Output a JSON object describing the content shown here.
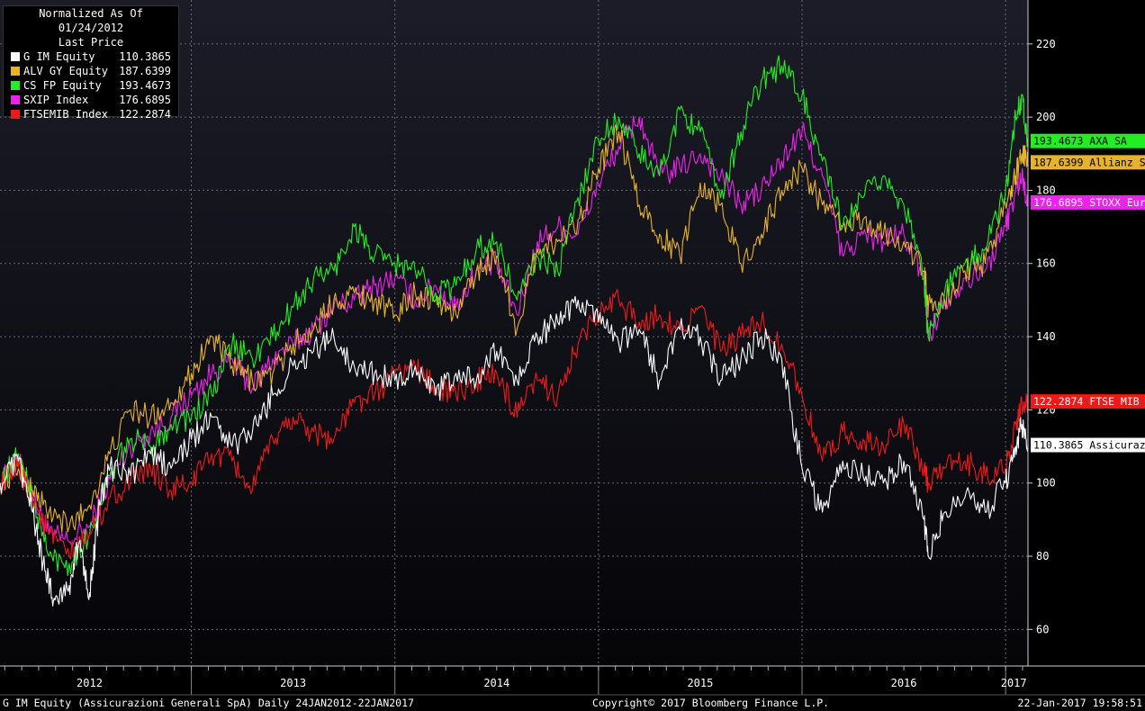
{
  "legend": {
    "title": "Normalized As Of 01/24/2012",
    "subtitle": "Last Price",
    "items": [
      {
        "name": "G IM Equity",
        "value": "110.3865",
        "color": "#ffffff"
      },
      {
        "name": "ALV GY Equity",
        "value": "187.6399",
        "color": "#e6b32a"
      },
      {
        "name": "CS FP Equity",
        "value": "193.4673",
        "color": "#22ee22"
      },
      {
        "name": "SXIP Index",
        "value": "176.6895",
        "color": "#ee22ee"
      },
      {
        "name": "FTSEMIB Index",
        "value": "122.2874",
        "color": "#ee1a1a"
      }
    ]
  },
  "footer": {
    "left": "G IM Equity (Assicurazioni Generali SpA)  Daily 24JAN2012-22JAN2017",
    "center": "Copyright© 2017 Bloomberg Finance L.P.",
    "right": "22-Jan-2017 19:58:51"
  },
  "chart_data": {
    "type": "line",
    "ylim": [
      50,
      232
    ],
    "xlim": [
      2012.06,
      2017.11
    ],
    "grid": true,
    "y_ticks": [
      60,
      80,
      100,
      120,
      140,
      160,
      180,
      200,
      220
    ],
    "x_tick_labels": [
      {
        "label": "2012",
        "x": 2012.5
      },
      {
        "label": "2013",
        "x": 2013.5
      },
      {
        "label": "2014",
        "x": 2014.5
      },
      {
        "label": "2015",
        "x": 2015.5
      },
      {
        "label": "2016",
        "x": 2016.5
      },
      {
        "label": "2017",
        "x": 2017.04
      }
    ],
    "year_boundaries": [
      2012.0,
      2013.0,
      2014.0,
      2015.0,
      2016.0,
      2017.0
    ],
    "series": [
      {
        "name": "SXIP Index",
        "color": "#ee22ee",
        "last_label": "176.6895 STOXX Eur",
        "last_value": 176.6895,
        "points": [
          [
            2012.06,
            100
          ],
          [
            2012.15,
            106
          ],
          [
            2012.22,
            96
          ],
          [
            2012.3,
            86
          ],
          [
            2012.4,
            84
          ],
          [
            2012.5,
            88
          ],
          [
            2012.6,
            101
          ],
          [
            2012.7,
            110
          ],
          [
            2012.8,
            114
          ],
          [
            2012.9,
            118
          ],
          [
            2013.0,
            124
          ],
          [
            2013.1,
            130
          ],
          [
            2013.2,
            134
          ],
          [
            2013.3,
            126
          ],
          [
            2013.4,
            134
          ],
          [
            2013.5,
            138
          ],
          [
            2013.6,
            142
          ],
          [
            2013.7,
            148
          ],
          [
            2013.8,
            150
          ],
          [
            2013.9,
            154
          ],
          [
            2014.0,
            156
          ],
          [
            2014.1,
            150
          ],
          [
            2014.2,
            154
          ],
          [
            2014.3,
            148
          ],
          [
            2014.4,
            158
          ],
          [
            2014.5,
            160
          ],
          [
            2014.6,
            146
          ],
          [
            2014.7,
            166
          ],
          [
            2014.8,
            170
          ],
          [
            2014.9,
            168
          ],
          [
            2015.0,
            182
          ],
          [
            2015.1,
            192
          ],
          [
            2015.2,
            200
          ],
          [
            2015.3,
            184
          ],
          [
            2015.4,
            186
          ],
          [
            2015.5,
            190
          ],
          [
            2015.6,
            184
          ],
          [
            2015.7,
            176
          ],
          [
            2015.8,
            180
          ],
          [
            2015.9,
            188
          ],
          [
            2016.0,
            196
          ],
          [
            2016.1,
            184
          ],
          [
            2016.2,
            162
          ],
          [
            2016.3,
            168
          ],
          [
            2016.4,
            166
          ],
          [
            2016.5,
            168
          ],
          [
            2016.6,
            156
          ],
          [
            2016.62,
            140
          ],
          [
            2016.7,
            150
          ],
          [
            2016.8,
            156
          ],
          [
            2016.9,
            158
          ],
          [
            2017.0,
            170
          ],
          [
            2017.05,
            180
          ],
          [
            2017.08,
            184
          ],
          [
            2017.11,
            176.6895
          ]
        ]
      },
      {
        "name": "ALV GY Equity",
        "color": "#e6b32a",
        "last_label": "187.6399 Allianz S",
        "last_value": 187.6399,
        "points": [
          [
            2012.06,
            100
          ],
          [
            2012.15,
            104
          ],
          [
            2012.22,
            98
          ],
          [
            2012.3,
            92
          ],
          [
            2012.4,
            88
          ],
          [
            2012.5,
            94
          ],
          [
            2012.6,
            108
          ],
          [
            2012.7,
            120
          ],
          [
            2012.8,
            118
          ],
          [
            2012.9,
            122
          ],
          [
            2013.0,
            130
          ],
          [
            2013.1,
            140
          ],
          [
            2013.2,
            132
          ],
          [
            2013.3,
            128
          ],
          [
            2013.4,
            130
          ],
          [
            2013.5,
            138
          ],
          [
            2013.6,
            142
          ],
          [
            2013.7,
            150
          ],
          [
            2013.8,
            152
          ],
          [
            2013.9,
            150
          ],
          [
            2014.0,
            146
          ],
          [
            2014.1,
            152
          ],
          [
            2014.2,
            150
          ],
          [
            2014.3,
            146
          ],
          [
            2014.4,
            158
          ],
          [
            2014.5,
            162
          ],
          [
            2014.6,
            142
          ],
          [
            2014.7,
            164
          ],
          [
            2014.8,
            166
          ],
          [
            2014.9,
            172
          ],
          [
            2015.0,
            186
          ],
          [
            2015.1,
            196
          ],
          [
            2015.2,
            176
          ],
          [
            2015.3,
            168
          ],
          [
            2015.4,
            162
          ],
          [
            2015.5,
            182
          ],
          [
            2015.6,
            176
          ],
          [
            2015.7,
            160
          ],
          [
            2015.8,
            168
          ],
          [
            2015.9,
            180
          ],
          [
            2016.0,
            186
          ],
          [
            2016.1,
            176
          ],
          [
            2016.2,
            170
          ],
          [
            2016.3,
            172
          ],
          [
            2016.4,
            168
          ],
          [
            2016.5,
            166
          ],
          [
            2016.6,
            158
          ],
          [
            2016.62,
            148
          ],
          [
            2016.7,
            150
          ],
          [
            2016.8,
            158
          ],
          [
            2016.9,
            160
          ],
          [
            2017.0,
            176
          ],
          [
            2017.05,
            184
          ],
          [
            2017.08,
            190
          ],
          [
            2017.11,
            187.6399
          ]
        ]
      },
      {
        "name": "CS FP Equity",
        "color": "#22ee22",
        "last_label": "193.4673 AXA SA",
        "last_value": 193.4673,
        "points": [
          [
            2012.06,
            100
          ],
          [
            2012.15,
            108
          ],
          [
            2012.22,
            96
          ],
          [
            2012.3,
            80
          ],
          [
            2012.4,
            78
          ],
          [
            2012.5,
            86
          ],
          [
            2012.6,
            102
          ],
          [
            2012.7,
            112
          ],
          [
            2012.8,
            110
          ],
          [
            2012.9,
            116
          ],
          [
            2013.0,
            118
          ],
          [
            2013.1,
            124
          ],
          [
            2013.2,
            138
          ],
          [
            2013.3,
            134
          ],
          [
            2013.4,
            140
          ],
          [
            2013.5,
            148
          ],
          [
            2013.6,
            156
          ],
          [
            2013.7,
            158
          ],
          [
            2013.8,
            170
          ],
          [
            2013.9,
            162
          ],
          [
            2014.0,
            160
          ],
          [
            2014.1,
            158
          ],
          [
            2014.2,
            152
          ],
          [
            2014.3,
            154
          ],
          [
            2014.4,
            164
          ],
          [
            2014.5,
            166
          ],
          [
            2014.6,
            150
          ],
          [
            2014.7,
            162
          ],
          [
            2014.8,
            158
          ],
          [
            2014.9,
            178
          ],
          [
            2015.0,
            194
          ],
          [
            2015.1,
            200
          ],
          [
            2015.2,
            190
          ],
          [
            2015.3,
            184
          ],
          [
            2015.4,
            202
          ],
          [
            2015.5,
            196
          ],
          [
            2015.6,
            178
          ],
          [
            2015.7,
            196
          ],
          [
            2015.8,
            210
          ],
          [
            2015.9,
            214
          ],
          [
            2016.0,
            206
          ],
          [
            2016.1,
            188
          ],
          [
            2016.2,
            170
          ],
          [
            2016.3,
            178
          ],
          [
            2016.4,
            184
          ],
          [
            2016.5,
            176
          ],
          [
            2016.6,
            156
          ],
          [
            2016.62,
            140
          ],
          [
            2016.7,
            152
          ],
          [
            2016.8,
            160
          ],
          [
            2016.9,
            164
          ],
          [
            2017.0,
            180
          ],
          [
            2017.05,
            200
          ],
          [
            2017.08,
            206
          ],
          [
            2017.11,
            193.4673
          ]
        ]
      },
      {
        "name": "FTSEMIB Index",
        "color": "#ee1a1a",
        "last_label": "122.2874 FTSE MIB",
        "last_value": 122.2874,
        "points": [
          [
            2012.06,
            100
          ],
          [
            2012.15,
            104
          ],
          [
            2012.22,
            96
          ],
          [
            2012.3,
            86
          ],
          [
            2012.4,
            80
          ],
          [
            2012.5,
            86
          ],
          [
            2012.6,
            96
          ],
          [
            2012.7,
            100
          ],
          [
            2012.8,
            104
          ],
          [
            2012.9,
            98
          ],
          [
            2013.0,
            100
          ],
          [
            2013.1,
            108
          ],
          [
            2013.2,
            106
          ],
          [
            2013.3,
            98
          ],
          [
            2013.4,
            112
          ],
          [
            2013.5,
            118
          ],
          [
            2013.6,
            114
          ],
          [
            2013.7,
            112
          ],
          [
            2013.8,
            122
          ],
          [
            2013.9,
            124
          ],
          [
            2014.0,
            130
          ],
          [
            2014.1,
            132
          ],
          [
            2014.2,
            126
          ],
          [
            2014.3,
            124
          ],
          [
            2014.4,
            128
          ],
          [
            2014.5,
            130
          ],
          [
            2014.6,
            118
          ],
          [
            2014.7,
            128
          ],
          [
            2014.8,
            124
          ],
          [
            2014.9,
            138
          ],
          [
            2015.0,
            146
          ],
          [
            2015.1,
            150
          ],
          [
            2015.2,
            144
          ],
          [
            2015.3,
            146
          ],
          [
            2015.4,
            142
          ],
          [
            2015.5,
            148
          ],
          [
            2015.6,
            136
          ],
          [
            2015.7,
            140
          ],
          [
            2015.8,
            144
          ],
          [
            2015.9,
            138
          ],
          [
            2016.0,
            124
          ],
          [
            2016.1,
            106
          ],
          [
            2016.2,
            114
          ],
          [
            2016.3,
            112
          ],
          [
            2016.4,
            110
          ],
          [
            2016.5,
            116
          ],
          [
            2016.6,
            104
          ],
          [
            2016.62,
            100
          ],
          [
            2016.7,
            104
          ],
          [
            2016.8,
            106
          ],
          [
            2016.9,
            102
          ],
          [
            2017.0,
            104
          ],
          [
            2017.05,
            116
          ],
          [
            2017.08,
            122
          ],
          [
            2017.11,
            122.2874
          ]
        ]
      },
      {
        "name": "G IM Equity",
        "color": "#ffffff",
        "last_label": "110.3865 Assicuraz",
        "last_value": 110.3865,
        "points": [
          [
            2012.06,
            100
          ],
          [
            2012.15,
            106
          ],
          [
            2012.22,
            92
          ],
          [
            2012.28,
            76
          ],
          [
            2012.33,
            68
          ],
          [
            2012.4,
            72
          ],
          [
            2012.45,
            84
          ],
          [
            2012.5,
            70
          ],
          [
            2012.55,
            94
          ],
          [
            2012.6,
            104
          ],
          [
            2012.7,
            102
          ],
          [
            2012.8,
            108
          ],
          [
            2012.9,
            104
          ],
          [
            2013.0,
            112
          ],
          [
            2013.1,
            118
          ],
          [
            2013.2,
            110
          ],
          [
            2013.3,
            114
          ],
          [
            2013.4,
            124
          ],
          [
            2013.5,
            132
          ],
          [
            2013.6,
            136
          ],
          [
            2013.7,
            140
          ],
          [
            2013.8,
            132
          ],
          [
            2013.9,
            130
          ],
          [
            2014.0,
            128
          ],
          [
            2014.1,
            132
          ],
          [
            2014.2,
            124
          ],
          [
            2014.3,
            130
          ],
          [
            2014.4,
            128
          ],
          [
            2014.5,
            136
          ],
          [
            2014.6,
            128
          ],
          [
            2014.7,
            140
          ],
          [
            2014.8,
            144
          ],
          [
            2014.9,
            150
          ],
          [
            2015.0,
            144
          ],
          [
            2015.1,
            138
          ],
          [
            2015.2,
            142
          ],
          [
            2015.3,
            128
          ],
          [
            2015.4,
            142
          ],
          [
            2015.5,
            140
          ],
          [
            2015.6,
            128
          ],
          [
            2015.7,
            134
          ],
          [
            2015.8,
            140
          ],
          [
            2015.9,
            134
          ],
          [
            2016.0,
            104
          ],
          [
            2016.1,
            92
          ],
          [
            2016.2,
            106
          ],
          [
            2016.3,
            102
          ],
          [
            2016.4,
            100
          ],
          [
            2016.5,
            106
          ],
          [
            2016.6,
            90
          ],
          [
            2016.62,
            80
          ],
          [
            2016.7,
            92
          ],
          [
            2016.8,
            96
          ],
          [
            2016.9,
            92
          ],
          [
            2017.0,
            100
          ],
          [
            2017.05,
            110
          ],
          [
            2017.08,
            116
          ],
          [
            2017.11,
            110.3865
          ]
        ]
      }
    ]
  }
}
